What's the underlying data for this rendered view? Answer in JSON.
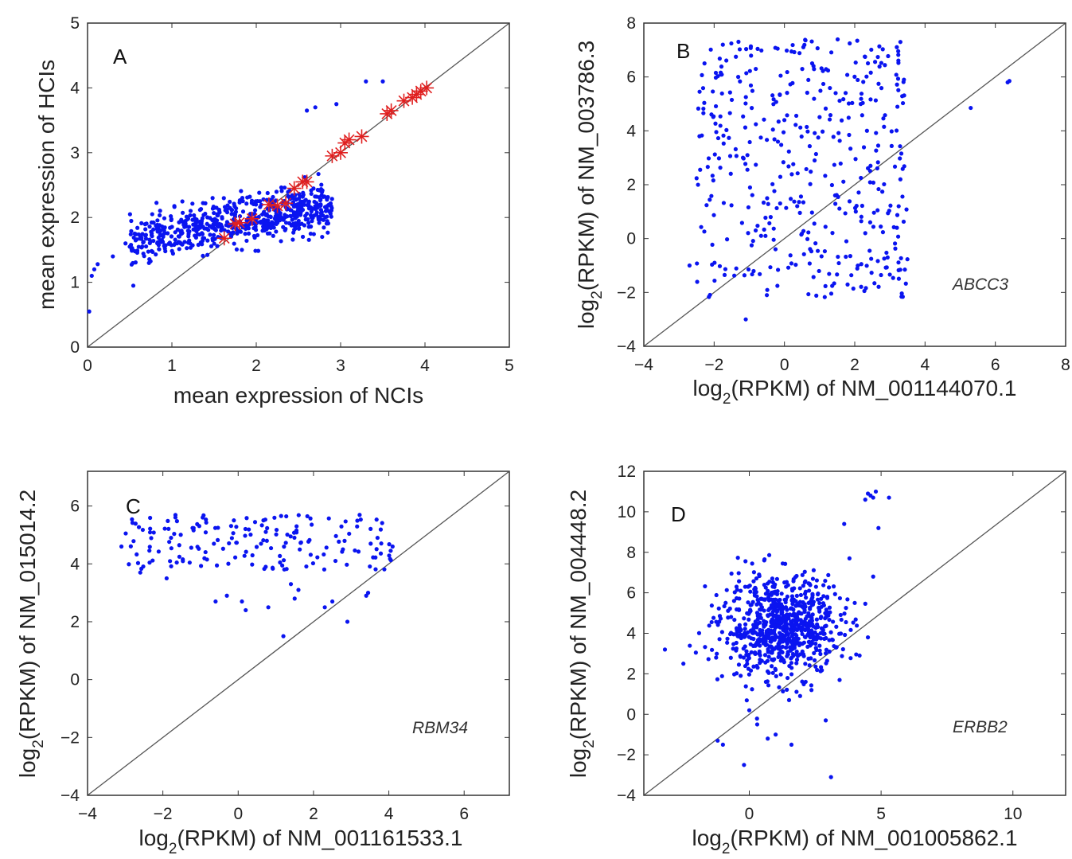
{
  "chart_data": [
    {
      "type": "scatter",
      "panel_label": "A",
      "xlabel": "mean expression of NCIs",
      "ylabel": "mean expression of HCIs",
      "xlim": [
        0,
        5
      ],
      "ylim": [
        0,
        5
      ],
      "xticks": [
        "0",
        "1",
        "2",
        "3",
        "4",
        "5"
      ],
      "yticks": [
        "0",
        "1",
        "2",
        "3",
        "4",
        "5"
      ],
      "diagonal": true,
      "series": [
        {
          "color": "#0a14f0",
          "marker": "dot",
          "cluster": {
            "x_range": [
              0.5,
              2.9
            ],
            "y_trend": [
              0.95,
              0.82
            ],
            "n": 650
          },
          "points": [
            [
              0.02,
              0.55
            ],
            [
              0.05,
              1.1
            ],
            [
              0.08,
              1.2
            ],
            [
              0.12,
              1.28
            ],
            [
              0.3,
              1.4
            ],
            [
              0.45,
              1.6
            ],
            [
              0.5,
              1.55
            ],
            [
              3.3,
              4.1
            ],
            [
              3.5,
              4.1
            ],
            [
              2.6,
              3.65
            ],
            [
              2.7,
              3.7
            ],
            [
              2.95,
              3.75
            ]
          ]
        },
        {
          "color": "#e02020",
          "marker": "star",
          "points": [
            [
              1.62,
              1.68
            ],
            [
              1.75,
              1.9
            ],
            [
              1.8,
              1.92
            ],
            [
              1.95,
              1.98
            ],
            [
              2.15,
              2.2
            ],
            [
              2.25,
              2.18
            ],
            [
              2.35,
              2.22
            ],
            [
              2.45,
              2.45
            ],
            [
              2.55,
              2.55
            ],
            [
              2.6,
              2.55
            ],
            [
              2.9,
              2.95
            ],
            [
              3.0,
              3.0
            ],
            [
              3.05,
              3.15
            ],
            [
              3.1,
              3.2
            ],
            [
              3.25,
              3.25
            ],
            [
              3.55,
              3.6
            ],
            [
              3.6,
              3.65
            ],
            [
              3.75,
              3.8
            ],
            [
              3.85,
              3.85
            ],
            [
              3.9,
              3.9
            ],
            [
              3.95,
              3.95
            ],
            [
              4.02,
              4.0
            ]
          ]
        }
      ]
    },
    {
      "type": "scatter",
      "panel_label": "B",
      "gene": "ABCC3",
      "xlabel_pre": "log",
      "xlabel_sub": "2",
      "xlabel_post": "(RPKM) of NM_001144070.1",
      "ylabel_pre": "log",
      "ylabel_sub": "2",
      "ylabel_post": "(RPKM) of NM_003786.3",
      "xlim": [
        -4,
        8
      ],
      "ylim": [
        -4,
        8
      ],
      "xticks": [
        "−4",
        "−2",
        "0",
        "2",
        "4",
        "6",
        "8"
      ],
      "yticks": [
        "−4",
        "−2",
        "0",
        "2",
        "4",
        "6",
        "8"
      ],
      "diagonal": true,
      "series": [
        {
          "color": "#0a14f0",
          "marker": "dot",
          "cluster": {
            "x_range": [
              -2.5,
              3.5
            ],
            "y_range": [
              -2.2,
              7.4
            ],
            "n": 420
          },
          "points": [
            [
              -1.1,
              -3.0
            ],
            [
              -0.5,
              -2.1
            ],
            [
              -2.7,
              -1.0
            ],
            [
              5.3,
              4.85
            ],
            [
              6.35,
              5.8
            ],
            [
              6.4,
              5.85
            ],
            [
              3.2,
              0.4
            ],
            [
              3.25,
              1.2
            ],
            [
              2.3,
              0.2
            ],
            [
              3.4,
              5.9
            ]
          ]
        }
      ]
    },
    {
      "type": "scatter",
      "panel_label": "C",
      "gene": "RBM34",
      "xlabel_pre": "log",
      "xlabel_sub": "2",
      "xlabel_post": "(RPKM) of NM_001161533.1",
      "ylabel_pre": "log",
      "ylabel_sub": "2",
      "ylabel_post": "(RPKM) of NM_015014.2",
      "xlim": [
        -4,
        7.2
      ],
      "ylim": [
        -4,
        7.2
      ],
      "xticks": [
        "−4",
        "−2",
        "0",
        "2",
        "4",
        "6"
      ],
      "yticks": [
        "−4",
        "−2",
        "0",
        "2",
        "4",
        "6"
      ],
      "diagonal": true,
      "series": [
        {
          "color": "#0a14f0",
          "marker": "dot",
          "cluster": {
            "x_range": [
              -3.0,
              4.2
            ],
            "y_range": [
              3.8,
              5.7
            ],
            "n": 170
          },
          "points": [
            [
              -3.1,
              4.6
            ],
            [
              -2.6,
              3.7
            ],
            [
              -1.9,
              3.5
            ],
            [
              -0.6,
              2.7
            ],
            [
              -0.3,
              2.9
            ],
            [
              0.1,
              2.7
            ],
            [
              0.2,
              2.4
            ],
            [
              0.8,
              2.5
            ],
            [
              1.2,
              1.5
            ],
            [
              1.5,
              2.8
            ],
            [
              1.6,
              3.1
            ],
            [
              1.4,
              3.3
            ],
            [
              2.3,
              2.5
            ],
            [
              2.5,
              2.7
            ],
            [
              2.9,
              2.0
            ],
            [
              3.4,
              2.9
            ],
            [
              3.45,
              3.0
            ],
            [
              3.7,
              4.9
            ],
            [
              4.1,
              4.6
            ]
          ]
        }
      ]
    },
    {
      "type": "scatter",
      "panel_label": "D",
      "gene": "ERBB2",
      "xlabel_pre": "log",
      "xlabel_sub": "2",
      "xlabel_post": "(RPKM) of NM_001005862.1",
      "ylabel_pre": "log",
      "ylabel_sub": "2",
      "ylabel_post": "(RPKM) of NM_004448.2",
      "xlim": [
        -4,
        12
      ],
      "ylim": [
        -4,
        12
      ],
      "xticks": [
        "0",
        "5",
        "10"
      ],
      "yticks": [
        "−4",
        "−2",
        "0",
        "2",
        "4",
        "6",
        "8",
        "10",
        "12"
      ],
      "diagonal": true,
      "series": [
        {
          "color": "#0a14f0",
          "marker": "dot",
          "cluster": {
            "x_center": 1.2,
            "y_center": 4.3,
            "x_sd": 1.1,
            "y_sd": 1.2,
            "n": 800
          },
          "points": [
            [
              -3.2,
              3.2
            ],
            [
              -2.5,
              2.5
            ],
            [
              -1.0,
              -1.5
            ],
            [
              0.0,
              0.2
            ],
            [
              0.3,
              -0.5
            ],
            [
              0.7,
              -1.2
            ],
            [
              1.0,
              -1.0
            ],
            [
              1.6,
              -1.5
            ],
            [
              3.1,
              -3.1
            ],
            [
              -1.2,
              -1.3
            ],
            [
              -0.2,
              -2.5
            ],
            [
              2.9,
              -0.3
            ],
            [
              3.6,
              9.4
            ],
            [
              3.8,
              7.7
            ],
            [
              4.4,
              10.6
            ],
            [
              4.5,
              10.9
            ],
            [
              4.6,
              10.8
            ],
            [
              4.7,
              10.7
            ],
            [
              4.8,
              11.0
            ],
            [
              4.9,
              9.2
            ],
            [
              5.3,
              10.7
            ],
            [
              4.7,
              6.8
            ],
            [
              4.5,
              3.8
            ],
            [
              4.0,
              5.5
            ]
          ]
        }
      ]
    }
  ]
}
